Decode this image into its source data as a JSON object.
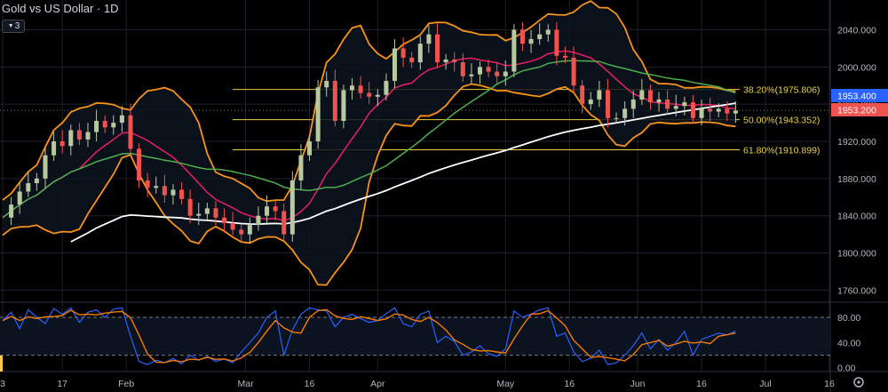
{
  "header": {
    "symbol": "Gold vs US Dollar",
    "separator": "·",
    "interval": "1D",
    "indicator_count": "3"
  },
  "icons": {
    "collapse": "chevron-down-icon",
    "settings": "gear-icon"
  },
  "colors": {
    "background": "#000000",
    "up": "#26a69a",
    "up_fill": "#b8c9a0",
    "down": "#ef5350",
    "bollinger": "#f7931a",
    "sma_short": "#e91e63",
    "sma_mid": "#4caf50",
    "sma_long": "#ffffff",
    "fib": "#e8d14a",
    "stoch_k": "#2962ff",
    "stoch_d": "#f57c00",
    "badge_blue": "#2962ff",
    "badge_red": "#ef5350"
  },
  "chart_data": {
    "type": "candlestick",
    "price_axis": {
      "ticks": [
        "2040.000",
        "2000.000",
        "1960.000",
        "1920.000",
        "1880.000",
        "1840.000",
        "1800.000",
        "1760.000"
      ],
      "tick_values": [
        2040,
        2000,
        1960,
        1920,
        1880,
        1840,
        1800,
        1760
      ],
      "range": [
        1747,
        2072
      ]
    },
    "time_axis": {
      "labels": [
        "3",
        "17",
        "Feb",
        "Mar",
        "16",
        "Apr",
        "May",
        "16",
        "Jun",
        "16",
        "Jul",
        "16"
      ],
      "dates": [
        "2023-01-03",
        "2023-01-17",
        "2023-02-01",
        "2023-03-01",
        "2023-03-16",
        "2023-04-01",
        "2023-05-01",
        "2023-05-16",
        "2023-06-01",
        "2023-06-16",
        "2023-07-01",
        "2023-07-16"
      ]
    },
    "fibonacci": [
      {
        "label": "38.20%(1975.806)",
        "value": 1975.806
      },
      {
        "label": "50.00%(1943.352)",
        "value": 1943.352
      },
      {
        "label": "61.80%(1910.899)",
        "value": 1910.899
      }
    ],
    "price_badges": [
      {
        "value": "1953.400",
        "color": "#2962ff"
      },
      {
        "value": "1953.200",
        "color": "#ef5350"
      }
    ],
    "close_series": [
      [
        "2023-01-03",
        1838
      ],
      [
        "2023-01-05",
        1852
      ],
      [
        "2023-01-07",
        1866
      ],
      [
        "2023-01-09",
        1875
      ],
      [
        "2023-01-11",
        1880
      ],
      [
        "2023-01-13",
        1905
      ],
      [
        "2023-01-15",
        1920
      ],
      [
        "2023-01-17",
        1915
      ],
      [
        "2023-01-19",
        1932
      ],
      [
        "2023-01-21",
        1922
      ],
      [
        "2023-01-23",
        1930
      ],
      [
        "2023-01-25",
        1942
      ],
      [
        "2023-01-27",
        1935
      ],
      [
        "2023-01-29",
        1940
      ],
      [
        "2023-01-31",
        1948
      ],
      [
        "2023-02-02",
        1912
      ],
      [
        "2023-02-04",
        1878
      ],
      [
        "2023-02-06",
        1870
      ],
      [
        "2023-02-08",
        1872
      ],
      [
        "2023-02-10",
        1862
      ],
      [
        "2023-02-12",
        1868
      ],
      [
        "2023-02-14",
        1858
      ],
      [
        "2023-02-16",
        1840
      ],
      [
        "2023-02-18",
        1842
      ],
      [
        "2023-02-20",
        1848
      ],
      [
        "2023-02-22",
        1838
      ],
      [
        "2023-02-24",
        1832
      ],
      [
        "2023-02-26",
        1825
      ],
      [
        "2023-02-28",
        1820
      ],
      [
        "2023-03-02",
        1830
      ],
      [
        "2023-03-04",
        1840
      ],
      [
        "2023-03-06",
        1850
      ],
      [
        "2023-03-08",
        1845
      ],
      [
        "2023-03-10",
        1820
      ],
      [
        "2023-03-12",
        1878
      ],
      [
        "2023-03-14",
        1905
      ],
      [
        "2023-03-16",
        1920
      ],
      [
        "2023-03-18",
        1978
      ],
      [
        "2023-03-20",
        1985
      ],
      [
        "2023-03-22",
        1942
      ],
      [
        "2023-03-24",
        1975
      ],
      [
        "2023-03-26",
        1980
      ],
      [
        "2023-03-28",
        1972
      ],
      [
        "2023-03-30",
        1968
      ],
      [
        "2023-04-01",
        1970
      ],
      [
        "2023-04-03",
        1985
      ],
      [
        "2023-04-05",
        2020
      ],
      [
        "2023-04-07",
        2010
      ],
      [
        "2023-04-09",
        2005
      ],
      [
        "2023-04-11",
        2025
      ],
      [
        "2023-04-13",
        2035
      ],
      [
        "2023-04-15",
        2005
      ],
      [
        "2023-04-17",
        2008
      ],
      [
        "2023-04-19",
        2005
      ],
      [
        "2023-04-21",
        1990
      ],
      [
        "2023-04-23",
        1992
      ],
      [
        "2023-04-25",
        2000
      ],
      [
        "2023-04-27",
        1995
      ],
      [
        "2023-04-29",
        1990
      ],
      [
        "2023-05-01",
        1995
      ],
      [
        "2023-05-03",
        2040
      ],
      [
        "2023-05-05",
        2025
      ],
      [
        "2023-05-07",
        2030
      ],
      [
        "2023-05-09",
        2035
      ],
      [
        "2023-05-11",
        2040
      ],
      [
        "2023-05-13",
        2012
      ],
      [
        "2023-05-15",
        2010
      ],
      [
        "2023-05-17",
        1980
      ],
      [
        "2023-05-19",
        1960
      ],
      [
        "2023-05-21",
        1965
      ],
      [
        "2023-05-23",
        1975
      ],
      [
        "2023-05-25",
        1945
      ],
      [
        "2023-05-27",
        1945
      ],
      [
        "2023-05-29",
        1955
      ],
      [
        "2023-05-31",
        1965
      ],
      [
        "2023-06-02",
        1975
      ],
      [
        "2023-06-04",
        1962
      ],
      [
        "2023-06-06",
        1965
      ],
      [
        "2023-06-08",
        1955
      ],
      [
        "2023-06-10",
        1958
      ],
      [
        "2023-06-12",
        1962
      ],
      [
        "2023-06-14",
        1945
      ],
      [
        "2023-06-16",
        1955
      ],
      [
        "2023-06-18",
        1952
      ],
      [
        "2023-06-20",
        1955
      ],
      [
        "2023-06-22",
        1950
      ],
      [
        "2023-06-24",
        1953.2
      ]
    ],
    "oscillator": {
      "name": "stochastic",
      "ticks": [
        "80.00",
        "40.00",
        "0.00"
      ],
      "tick_values": [
        80,
        40,
        0
      ],
      "range": [
        -6,
        104
      ],
      "bands": [
        80,
        20
      ],
      "k_series": [
        [
          "2023-01-03",
          75
        ],
        [
          "2023-01-05",
          88
        ],
        [
          "2023-01-07",
          62
        ],
        [
          "2023-01-09",
          92
        ],
        [
          "2023-01-11",
          80
        ],
        [
          "2023-01-13",
          70
        ],
        [
          "2023-01-15",
          94
        ],
        [
          "2023-01-17",
          85
        ],
        [
          "2023-01-19",
          95
        ],
        [
          "2023-01-21",
          72
        ],
        [
          "2023-01-23",
          88
        ],
        [
          "2023-01-25",
          92
        ],
        [
          "2023-01-27",
          80
        ],
        [
          "2023-01-29",
          93
        ],
        [
          "2023-01-31",
          95
        ],
        [
          "2023-02-02",
          50
        ],
        [
          "2023-02-04",
          10
        ],
        [
          "2023-02-06",
          5
        ],
        [
          "2023-02-08",
          12
        ],
        [
          "2023-02-10",
          8
        ],
        [
          "2023-02-12",
          15
        ],
        [
          "2023-02-14",
          6
        ],
        [
          "2023-02-16",
          20
        ],
        [
          "2023-02-18",
          12
        ],
        [
          "2023-02-20",
          18
        ],
        [
          "2023-02-22",
          10
        ],
        [
          "2023-02-24",
          14
        ],
        [
          "2023-02-26",
          8
        ],
        [
          "2023-02-28",
          25
        ],
        [
          "2023-03-02",
          40
        ],
        [
          "2023-03-04",
          55
        ],
        [
          "2023-03-06",
          80
        ],
        [
          "2023-03-08",
          90
        ],
        [
          "2023-03-10",
          20
        ],
        [
          "2023-03-12",
          60
        ],
        [
          "2023-03-14",
          85
        ],
        [
          "2023-03-16",
          95
        ],
        [
          "2023-03-18",
          92
        ],
        [
          "2023-03-20",
          90
        ],
        [
          "2023-03-22",
          65
        ],
        [
          "2023-03-24",
          80
        ],
        [
          "2023-03-26",
          85
        ],
        [
          "2023-03-28",
          78
        ],
        [
          "2023-03-30",
          72
        ],
        [
          "2023-04-01",
          75
        ],
        [
          "2023-04-03",
          86
        ],
        [
          "2023-04-05",
          95
        ],
        [
          "2023-04-07",
          70
        ],
        [
          "2023-04-09",
          65
        ],
        [
          "2023-04-11",
          85
        ],
        [
          "2023-04-13",
          90
        ],
        [
          "2023-04-15",
          40
        ],
        [
          "2023-04-17",
          50
        ],
        [
          "2023-04-19",
          42
        ],
        [
          "2023-04-21",
          20
        ],
        [
          "2023-04-23",
          25
        ],
        [
          "2023-04-25",
          35
        ],
        [
          "2023-04-27",
          22
        ],
        [
          "2023-04-29",
          18
        ],
        [
          "2023-05-01",
          30
        ],
        [
          "2023-05-03",
          90
        ],
        [
          "2023-05-05",
          80
        ],
        [
          "2023-05-07",
          85
        ],
        [
          "2023-05-09",
          92
        ],
        [
          "2023-05-11",
          95
        ],
        [
          "2023-05-13",
          50
        ],
        [
          "2023-05-15",
          55
        ],
        [
          "2023-05-17",
          25
        ],
        [
          "2023-05-19",
          10
        ],
        [
          "2023-05-21",
          15
        ],
        [
          "2023-05-23",
          28
        ],
        [
          "2023-05-25",
          5
        ],
        [
          "2023-05-27",
          8
        ],
        [
          "2023-05-29",
          20
        ],
        [
          "2023-05-31",
          35
        ],
        [
          "2023-06-02",
          55
        ],
        [
          "2023-06-04",
          30
        ],
        [
          "2023-06-06",
          45
        ],
        [
          "2023-06-08",
          28
        ],
        [
          "2023-06-10",
          40
        ],
        [
          "2023-06-12",
          58
        ],
        [
          "2023-06-14",
          20
        ],
        [
          "2023-06-16",
          45
        ],
        [
          "2023-06-18",
          50
        ],
        [
          "2023-06-20",
          55
        ],
        [
          "2023-06-22",
          52
        ],
        [
          "2023-06-24",
          58
        ]
      ]
    },
    "grid": true,
    "legend": "none"
  }
}
